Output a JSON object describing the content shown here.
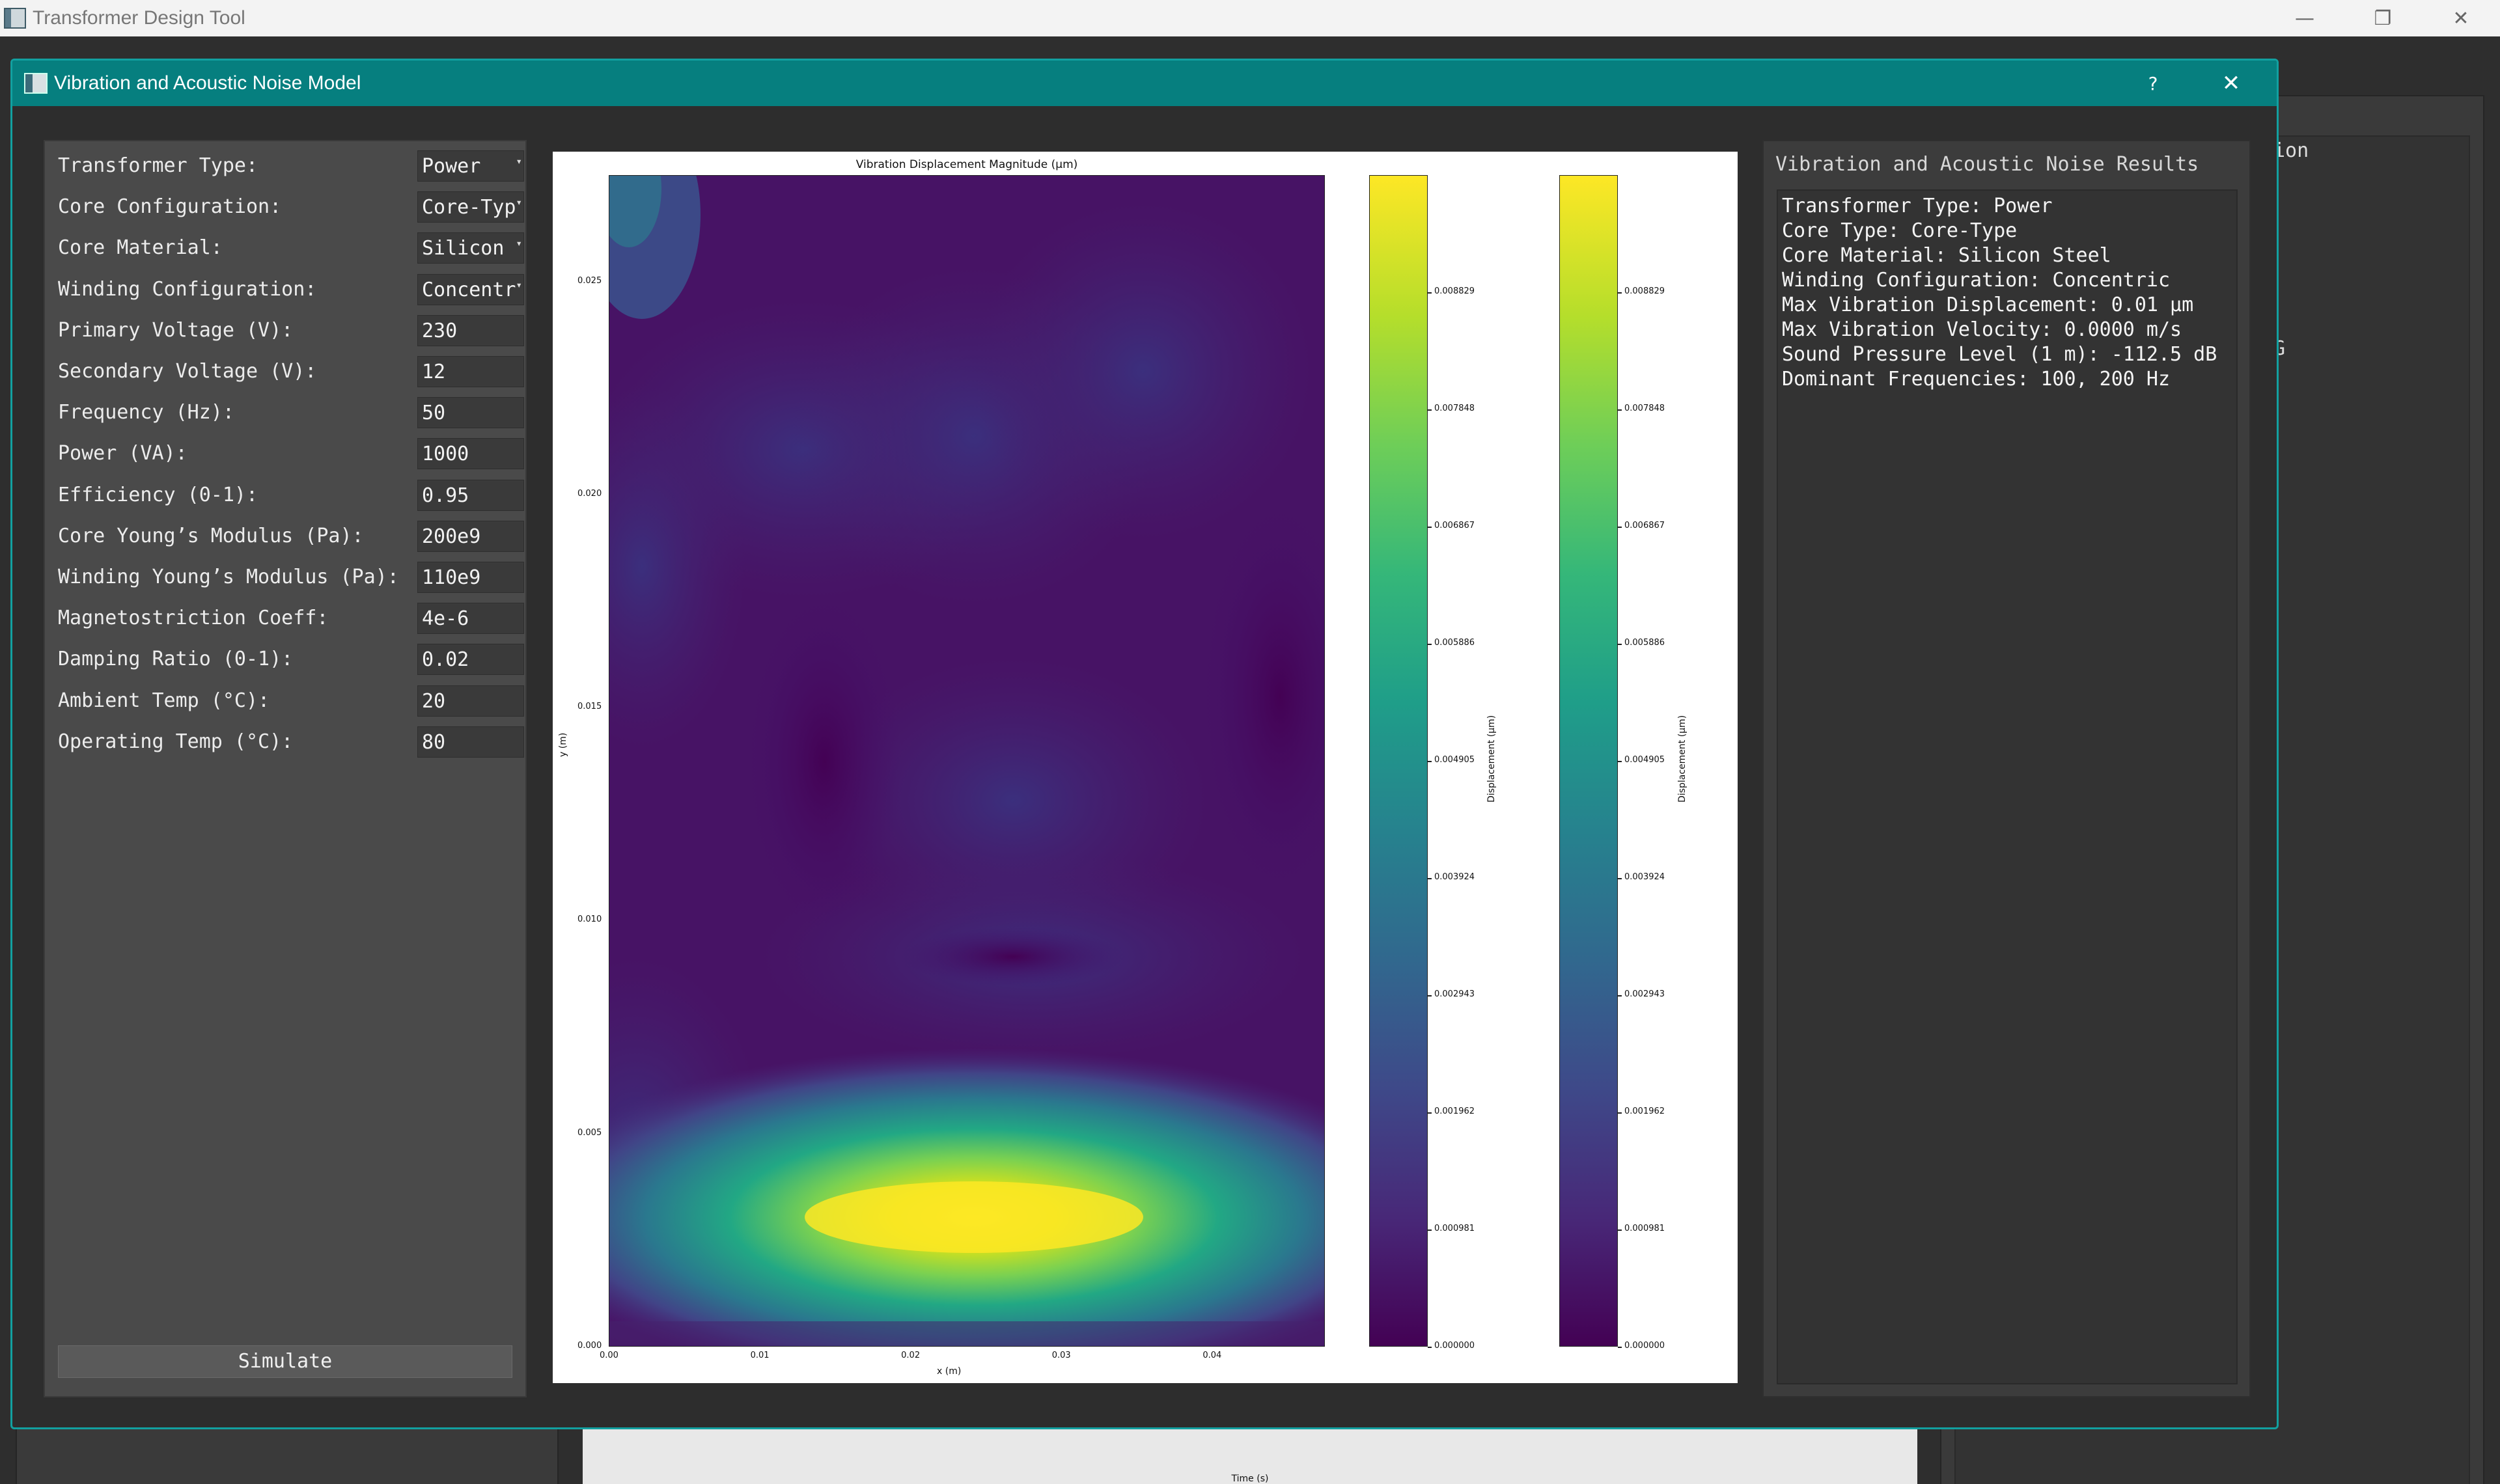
{
  "app": {
    "title": "Transformer Design Tool",
    "background_right_text_1": "ion",
    "background_right_text_2": "G",
    "background_plot_xlabel": "Time (s)"
  },
  "window_controls": {
    "minimize": "—",
    "restore": "❐",
    "close": "✕"
  },
  "dialog": {
    "title": "Vibration and Acoustic Noise Model",
    "help_label": "?",
    "close_label": "✕"
  },
  "params": [
    {
      "label": "Transformer Type:",
      "value": "Power",
      "kind": "combo"
    },
    {
      "label": "Core Configuration:",
      "value": "Core-Typ",
      "kind": "combo"
    },
    {
      "label": "Core Material:",
      "value": "Silicon",
      "kind": "combo"
    },
    {
      "label": "Winding Configuration:",
      "value": "Concentr",
      "kind": "combo"
    },
    {
      "label": "Primary Voltage (V):",
      "value": "230",
      "kind": "input"
    },
    {
      "label": "Secondary Voltage (V):",
      "value": "12",
      "kind": "input"
    },
    {
      "label": "Frequency (Hz):",
      "value": "50",
      "kind": "input"
    },
    {
      "label": "Power (VA):",
      "value": "1000",
      "kind": "input"
    },
    {
      "label": "Efficiency (0-1):",
      "value": "0.95",
      "kind": "input"
    },
    {
      "label": "Core Young’s Modulus (Pa):",
      "value": "200e9",
      "kind": "input"
    },
    {
      "label": "Winding Young’s Modulus (Pa):",
      "value": "110e9",
      "kind": "input"
    },
    {
      "label": "Magnetostriction Coeff:",
      "value": "4e-6",
      "kind": "input"
    },
    {
      "label": "Damping Ratio (0-1):",
      "value": "0.02",
      "kind": "input"
    },
    {
      "label": "Ambient Temp (°C):",
      "value": "20",
      "kind": "input"
    },
    {
      "label": "Operating Temp (°C):",
      "value": "80",
      "kind": "input"
    }
  ],
  "simulate_label": "Simulate",
  "chart_data": {
    "type": "heatmap",
    "title": "Vibration Displacement Magnitude (μm)",
    "xlabel": "x (m)",
    "ylabel": "y (m)",
    "xlim": [
      0.0,
      0.0475
    ],
    "ylim": [
      0.0,
      0.0275
    ],
    "xticks": [
      "0.00",
      "0.01",
      "0.02",
      "0.03",
      "0.04"
    ],
    "yticks": [
      "0.000",
      "0.005",
      "0.010",
      "0.015",
      "0.020",
      "0.025"
    ],
    "colormap": "viridis",
    "colorbar_label": "Displacement (μm)",
    "colorbar_count": 2,
    "colorbar_ticks": [
      "0.000000",
      "0.000981",
      "0.001962",
      "0.002943",
      "0.003924",
      "0.004905",
      "0.005886",
      "0.006867",
      "0.007848",
      "0.008829"
    ],
    "clim": [
      0.0,
      0.00981
    ],
    "peak": {
      "x": 0.024,
      "y": 0.003,
      "value": 0.0098
    }
  },
  "results": {
    "title": "Vibration and Acoustic Noise Results",
    "lines": [
      "Transformer Type: Power",
      "Core Type: Core-Type",
      "Core Material: Silicon Steel",
      "Winding Configuration: Concentric",
      "Max Vibration Displacement: 0.01 μm",
      "Max Vibration Velocity: 0.0000 m/s",
      "Sound Pressure Level (1 m): -112.5 dB",
      "Dominant Frequencies: 100, 200 Hz"
    ]
  }
}
